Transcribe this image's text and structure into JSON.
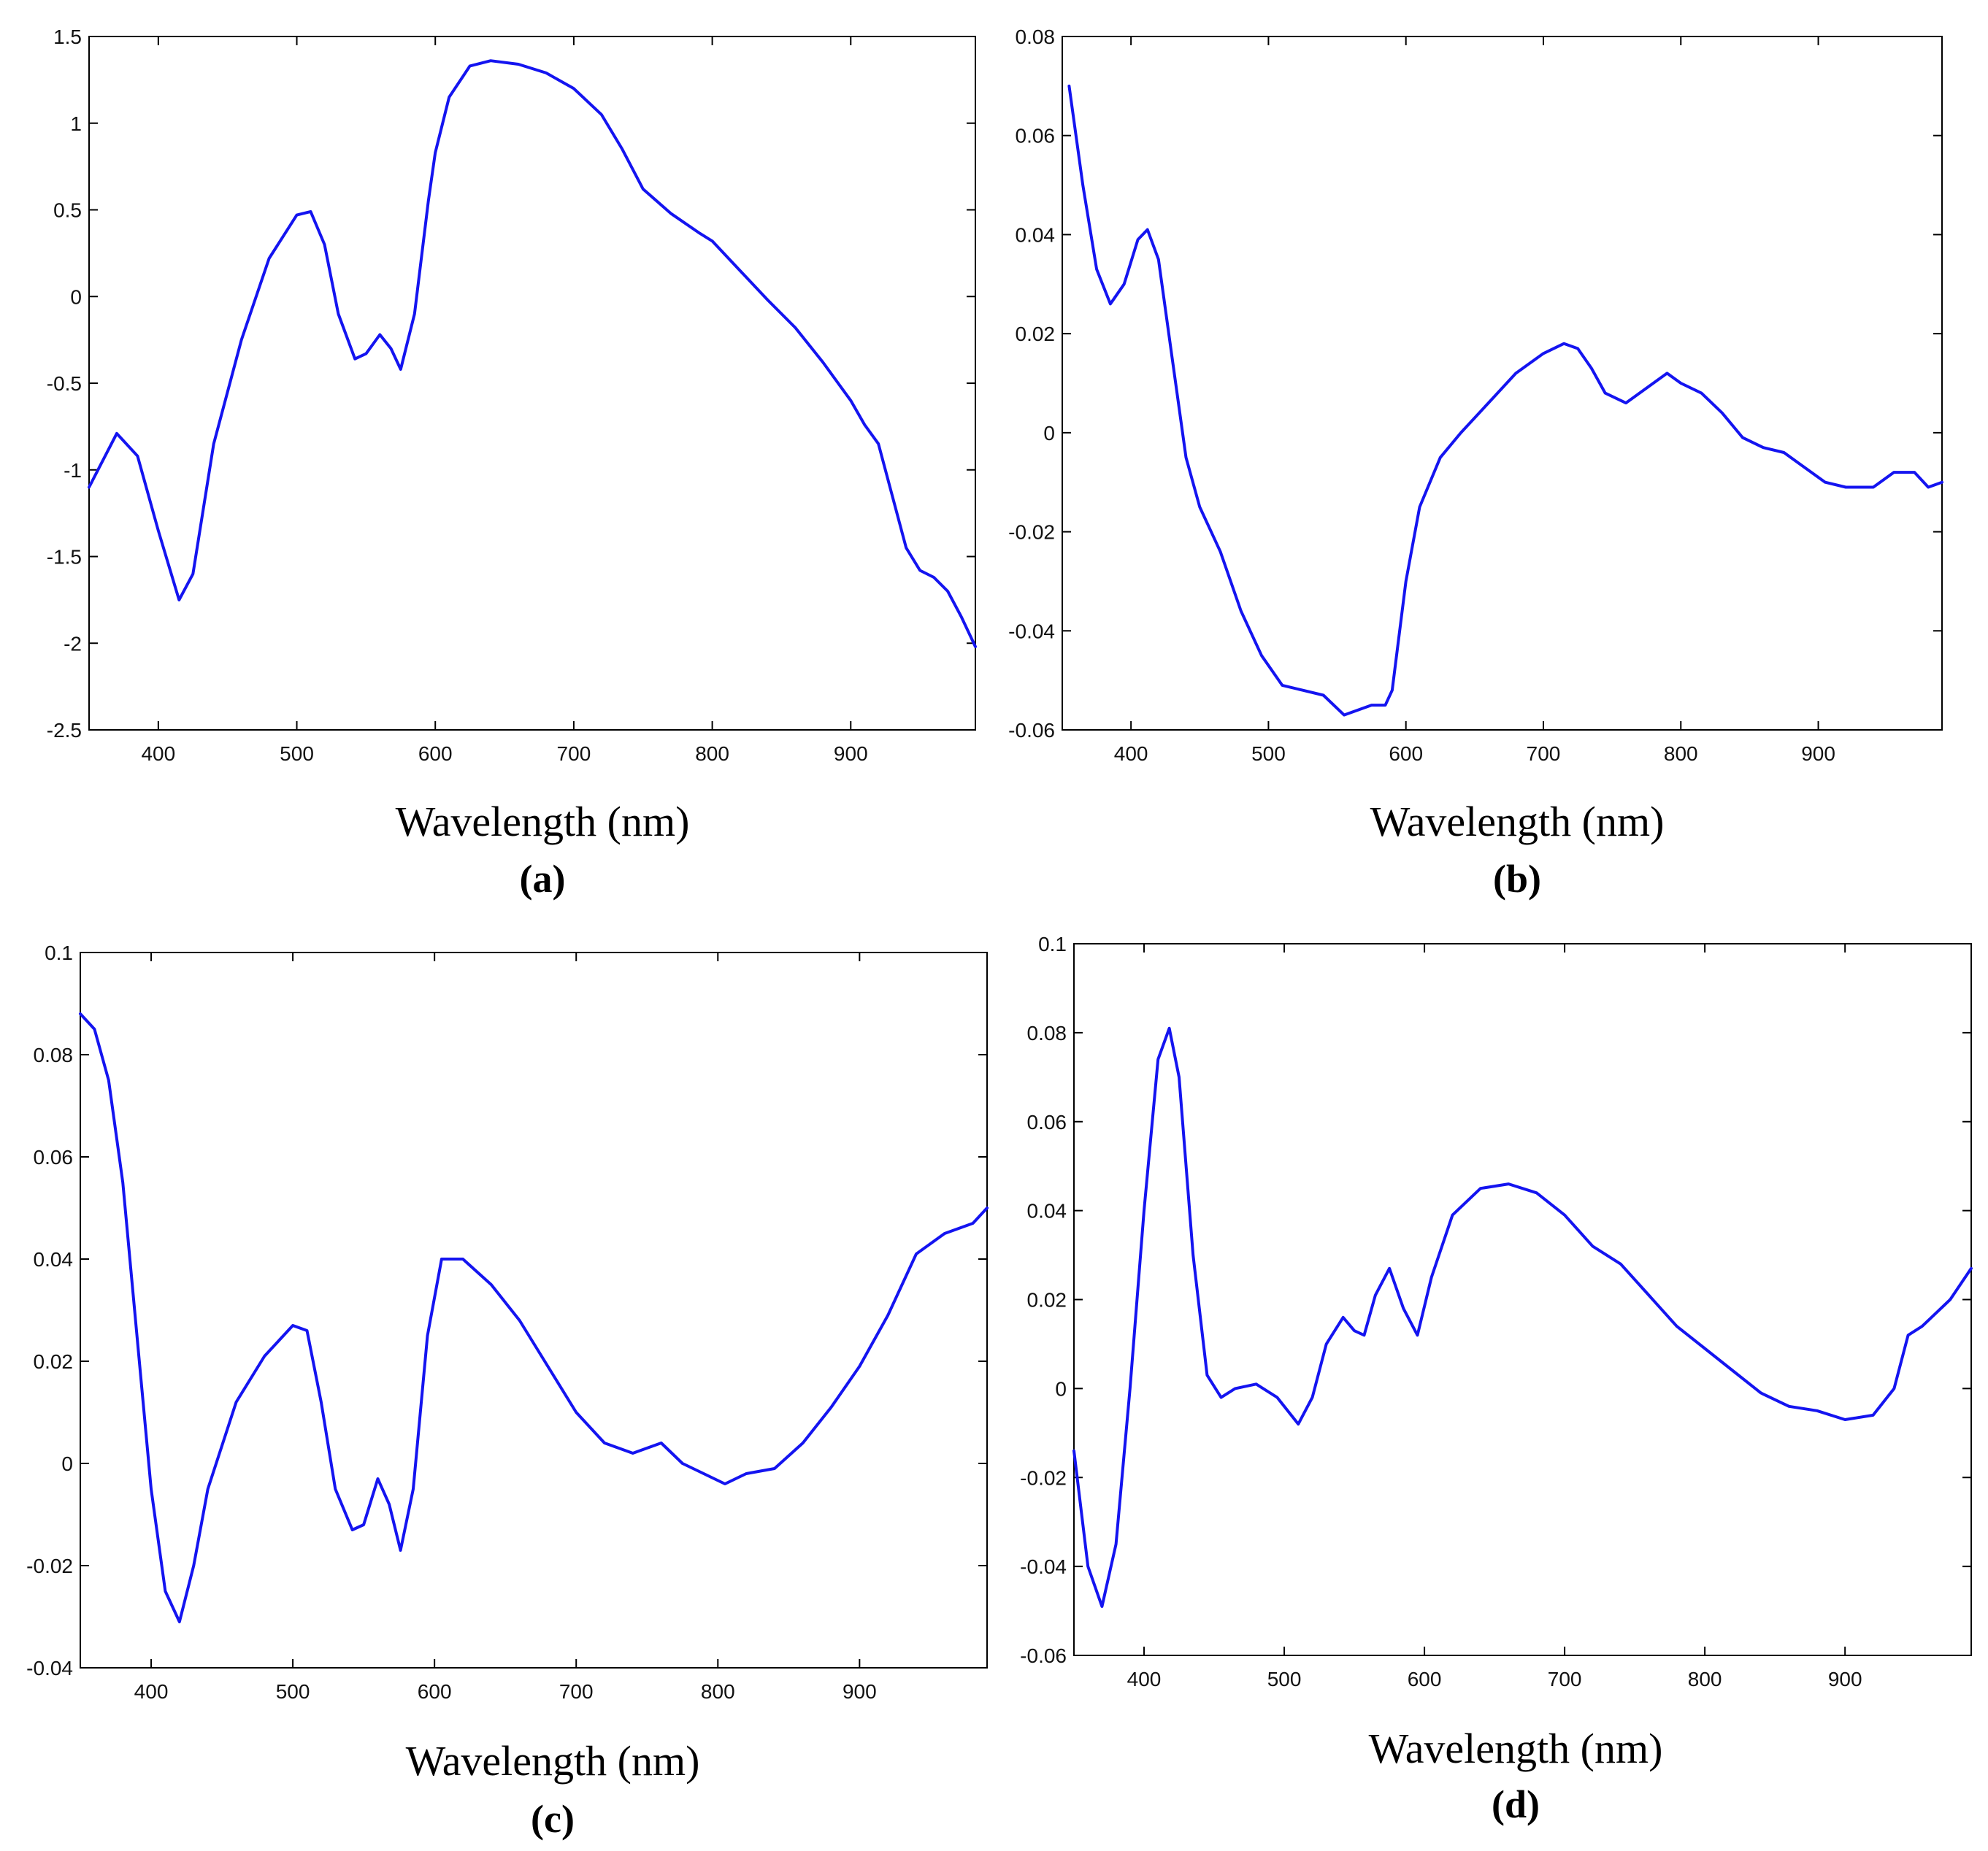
{
  "chart_data": [
    {
      "type": "line",
      "panel": "(a)",
      "xlabel": "Wavelength (nm)",
      "ylabel": "",
      "xlim": [
        350,
        990
      ],
      "ylim": [
        -2.5,
        1.5
      ],
      "xticks": [
        400,
        500,
        600,
        700,
        800,
        900
      ],
      "xtick_labels": [
        "400",
        "500",
        "600",
        "700",
        "800",
        "900"
      ],
      "yticks": [
        -2.5,
        -2,
        -1.5,
        -1,
        -0.5,
        0,
        0.5,
        1,
        1.5
      ],
      "ytick_labels": [
        "-2.5",
        "-2",
        "-1.5",
        "-1",
        "-0.5",
        "0",
        "0.5",
        "1",
        "1.5"
      ],
      "color": "#1414f0",
      "series": [
        {
          "name": "a",
          "x": [
            350,
            370,
            385,
            400,
            415,
            425,
            440,
            460,
            480,
            500,
            510,
            520,
            530,
            542,
            550,
            560,
            568,
            575,
            585,
            595,
            600,
            610,
            625,
            640,
            660,
            680,
            700,
            720,
            735,
            750,
            770,
            790,
            800,
            820,
            840,
            860,
            880,
            900,
            910,
            920,
            930,
            940,
            950,
            960,
            970,
            980,
            990
          ],
          "y": [
            -1.1,
            -0.79,
            -0.92,
            -1.35,
            -1.75,
            -1.6,
            -0.85,
            -0.25,
            0.22,
            0.47,
            0.49,
            0.3,
            -0.1,
            -0.36,
            -0.33,
            -0.22,
            -0.3,
            -0.42,
            -0.1,
            0.55,
            0.83,
            1.15,
            1.33,
            1.36,
            1.34,
            1.29,
            1.2,
            1.05,
            0.85,
            0.62,
            0.48,
            0.37,
            0.32,
            0.15,
            -0.02,
            -0.18,
            -0.38,
            -0.6,
            -0.74,
            -0.85,
            -1.15,
            -1.45,
            -1.58,
            -1.62,
            -1.7,
            -1.85,
            -2.02
          ]
        }
      ]
    },
    {
      "type": "line",
      "panel": "(b)",
      "xlabel": "Wavelength (nm)",
      "ylabel": "",
      "xlim": [
        350,
        990
      ],
      "ylim": [
        -0.06,
        0.08
      ],
      "xticks": [
        400,
        500,
        600,
        700,
        800,
        900
      ],
      "xtick_labels": [
        "400",
        "500",
        "600",
        "700",
        "800",
        "900"
      ],
      "yticks": [
        -0.06,
        -0.04,
        -0.02,
        0,
        0.02,
        0.04,
        0.06,
        0.08
      ],
      "ytick_labels": [
        "-0.06",
        "-0.04",
        "-0.02",
        "0",
        "0.02",
        "0.04",
        "0.06",
        "0.08"
      ],
      "color": "#1414f0",
      "series": [
        {
          "name": "b",
          "x": [
            355,
            365,
            375,
            385,
            395,
            405,
            412,
            420,
            430,
            440,
            450,
            465,
            480,
            495,
            510,
            525,
            540,
            555,
            565,
            575,
            585,
            590,
            600,
            610,
            625,
            640,
            660,
            680,
            700,
            715,
            725,
            735,
            745,
            760,
            775,
            790,
            800,
            815,
            830,
            845,
            860,
            875,
            890,
            905,
            920,
            940,
            955,
            970,
            980,
            990
          ],
          "y": [
            0.07,
            0.05,
            0.033,
            0.026,
            0.03,
            0.039,
            0.041,
            0.035,
            0.015,
            -0.005,
            -0.015,
            -0.024,
            -0.036,
            -0.045,
            -0.051,
            -0.052,
            -0.053,
            -0.057,
            -0.056,
            -0.055,
            -0.055,
            -0.052,
            -0.03,
            -0.015,
            -0.005,
            0.0,
            0.006,
            0.012,
            0.016,
            0.018,
            0.017,
            0.013,
            0.008,
            0.006,
            0.009,
            0.012,
            0.01,
            0.008,
            0.004,
            -0.001,
            -0.003,
            -0.004,
            -0.007,
            -0.01,
            -0.011,
            -0.011,
            -0.008,
            -0.008,
            -0.011,
            -0.01
          ]
        }
      ]
    },
    {
      "type": "line",
      "panel": "(c)",
      "xlabel": "Wavelength (nm)",
      "ylabel": "",
      "xlim": [
        350,
        990
      ],
      "ylim": [
        -0.04,
        0.1
      ],
      "xticks": [
        400,
        500,
        600,
        700,
        800,
        900
      ],
      "xtick_labels": [
        "400",
        "500",
        "600",
        "700",
        "800",
        "900"
      ],
      "yticks": [
        -0.04,
        -0.02,
        0,
        0.02,
        0.04,
        0.06,
        0.08,
        0.1
      ],
      "ytick_labels": [
        "-0.04",
        "-0.02",
        "0",
        "0.02",
        "0.04",
        "0.06",
        "0.08",
        "0.1"
      ],
      "color": "#1414f0",
      "series": [
        {
          "name": "c",
          "x": [
            350,
            360,
            370,
            380,
            390,
            400,
            410,
            420,
            430,
            440,
            460,
            480,
            500,
            510,
            520,
            530,
            542,
            550,
            560,
            568,
            576,
            585,
            595,
            605,
            620,
            640,
            660,
            680,
            700,
            720,
            740,
            760,
            775,
            790,
            805,
            820,
            840,
            860,
            880,
            900,
            920,
            940,
            950,
            960,
            970,
            980,
            990
          ],
          "y": [
            0.088,
            0.085,
            0.075,
            0.055,
            0.025,
            -0.005,
            -0.025,
            -0.031,
            -0.02,
            -0.005,
            0.012,
            0.021,
            0.027,
            0.026,
            0.012,
            -0.005,
            -0.013,
            -0.012,
            -0.003,
            -0.008,
            -0.017,
            -0.005,
            0.025,
            0.04,
            0.04,
            0.035,
            0.028,
            0.019,
            0.01,
            0.004,
            0.002,
            0.004,
            0.0,
            -0.002,
            -0.004,
            -0.002,
            -0.001,
            0.004,
            0.011,
            0.019,
            0.029,
            0.041,
            0.043,
            0.045,
            0.046,
            0.047,
            0.05
          ]
        }
      ]
    },
    {
      "type": "line",
      "panel": "(d)",
      "xlabel": "Wavelength (nm)",
      "ylabel": "",
      "xlim": [
        350,
        990
      ],
      "ylim": [
        -0.06,
        0.1
      ],
      "xticks": [
        400,
        500,
        600,
        700,
        800,
        900
      ],
      "xtick_labels": [
        "400",
        "500",
        "600",
        "700",
        "800",
        "900"
      ],
      "yticks": [
        -0.06,
        -0.04,
        -0.02,
        0,
        0.02,
        0.04,
        0.06,
        0.08,
        0.1
      ],
      "ytick_labels": [
        "-0.06",
        "-0.04",
        "-0.02",
        "0",
        "0.02",
        "0.04",
        "0.06",
        "0.08",
        "0.1"
      ],
      "color": "#1414f0",
      "series": [
        {
          "name": "d",
          "x": [
            350,
            360,
            370,
            380,
            390,
            400,
            410,
            418,
            425,
            435,
            445,
            455,
            465,
            480,
            495,
            510,
            520,
            530,
            542,
            550,
            557,
            565,
            575,
            585,
            595,
            605,
            620,
            640,
            660,
            680,
            700,
            720,
            740,
            760,
            780,
            800,
            820,
            840,
            860,
            880,
            900,
            920,
            935,
            945,
            955,
            965,
            975,
            990
          ],
          "y": [
            -0.014,
            -0.04,
            -0.049,
            -0.035,
            0.0,
            0.04,
            0.074,
            0.081,
            0.07,
            0.03,
            0.003,
            -0.002,
            0.0,
            0.001,
            -0.002,
            -0.008,
            -0.002,
            0.01,
            0.016,
            0.013,
            0.012,
            0.021,
            0.027,
            0.018,
            0.012,
            0.025,
            0.039,
            0.045,
            0.046,
            0.044,
            0.039,
            0.032,
            0.028,
            0.021,
            0.014,
            0.009,
            0.004,
            -0.001,
            -0.004,
            -0.005,
            -0.007,
            -0.006,
            0.0,
            0.012,
            0.014,
            0.017,
            0.02,
            0.027
          ]
        }
      ]
    }
  ],
  "panels": [
    {
      "xaxis_title": "Wavelength (nm)",
      "label": "(a)"
    },
    {
      "xaxis_title": "Wavelength (nm)",
      "label": "(b)"
    },
    {
      "xaxis_title": "Wavelength (nm)",
      "label": "(c)"
    },
    {
      "xaxis_title": "Wavelength (nm)",
      "label": "(d)"
    }
  ]
}
